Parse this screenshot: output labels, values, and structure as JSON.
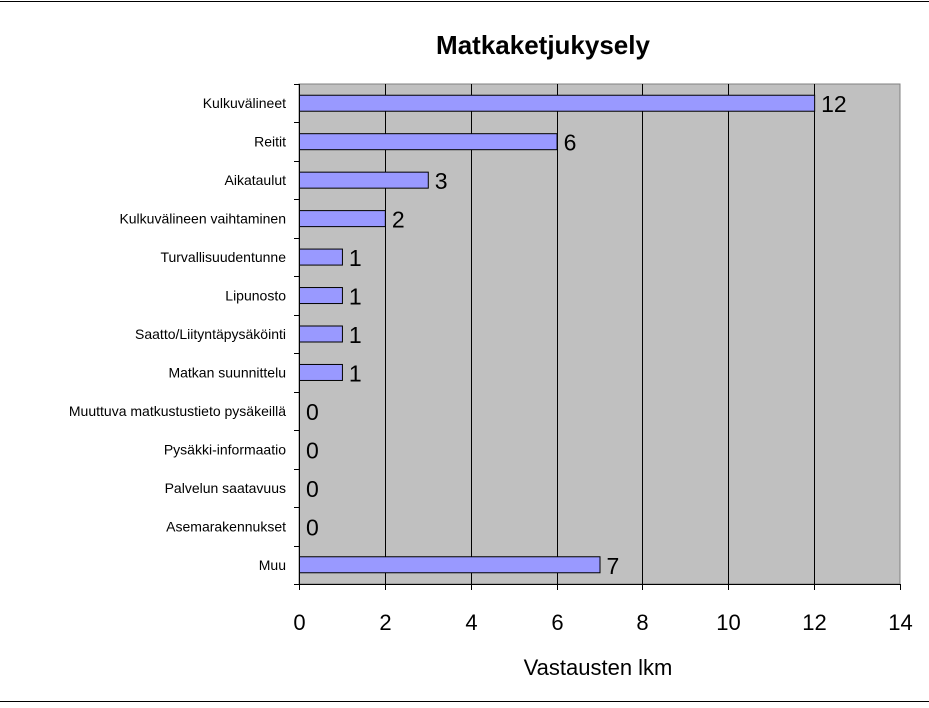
{
  "chart_data": {
    "type": "bar",
    "orientation": "horizontal",
    "title": "Matkaketjukysely",
    "xlabel": "Vastausten lkm",
    "ylabel": "",
    "xlim": [
      0,
      14
    ],
    "x_ticks": [
      0,
      2,
      4,
      6,
      8,
      10,
      12,
      14
    ],
    "grid": true,
    "legend": "none",
    "categories": [
      "Kulkuvälineet",
      "Reitit",
      "Aikataulut",
      "Kulkuvälineen vaihtaminen",
      "Turvallisuudentunne",
      "Lipunosto",
      "Saatto/Liityntäpysäköinti",
      "Matkan suunnittelu",
      "Muuttuva matkustustieto pysäkeillä",
      "Pysäkki-informaatio",
      "Palvelun saatavuus",
      "Asemarakennukset",
      "Muu"
    ],
    "values": [
      12,
      6,
      3,
      2,
      1,
      1,
      1,
      1,
      0,
      0,
      0,
      0,
      7
    ],
    "colors": {
      "bar_fill": "#9999ff",
      "bar_stroke": "#000000",
      "plot_background": "#c0c0c0",
      "gridline": "#000000"
    }
  }
}
